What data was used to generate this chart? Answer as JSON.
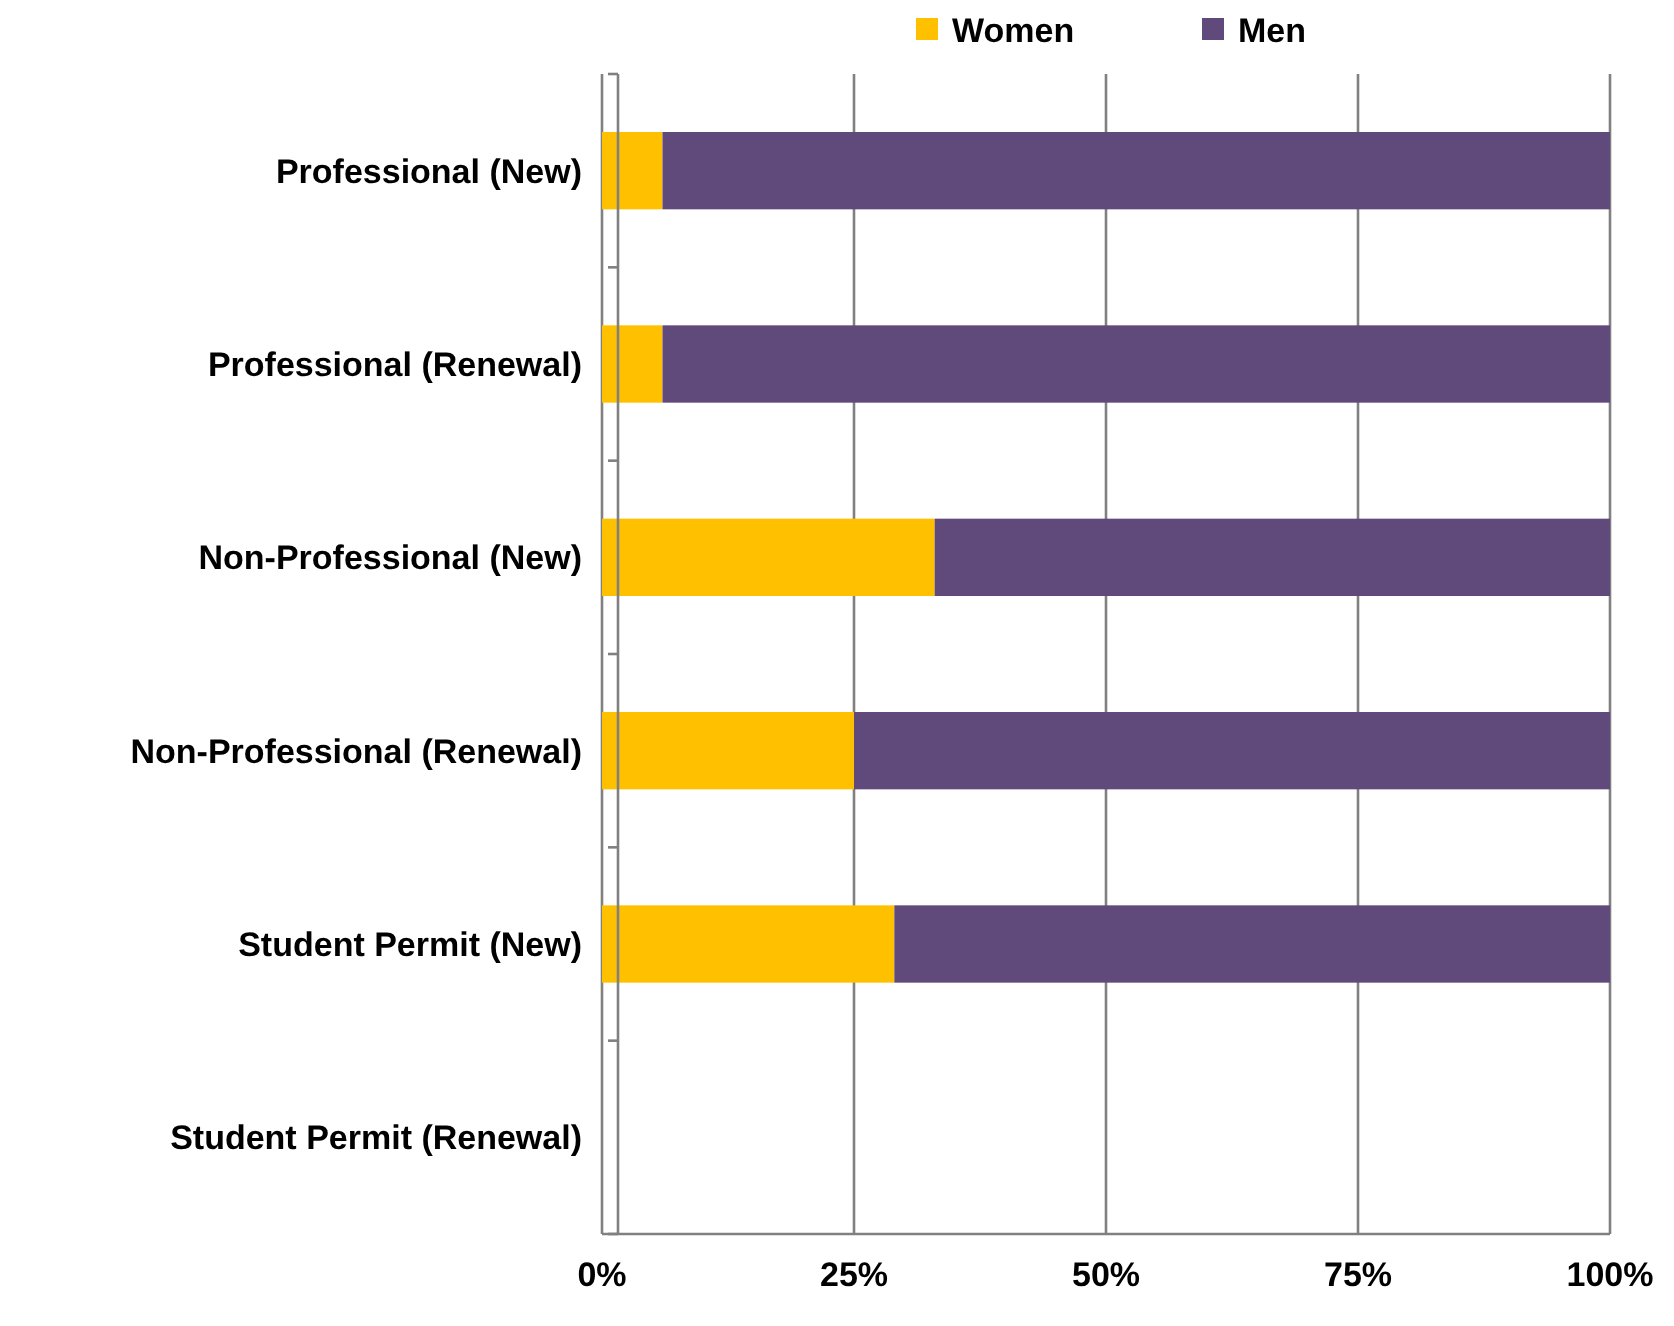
{
  "chart_data": {
    "type": "bar",
    "orientation": "horizontal",
    "stacked": true,
    "categories": [
      "Professional (New)",
      "Professional (Renewal)",
      "Non-Professional (New)",
      "Non-Professional (Renewal)",
      "Student Permit (New)",
      "Student Permit (Renewal)"
    ],
    "series": [
      {
        "name": "Women",
        "color": "#ffc000",
        "values": [
          6,
          6,
          33,
          25,
          29,
          null
        ]
      },
      {
        "name": "Men",
        "color": "#604a7b",
        "values": [
          94,
          94,
          67,
          75,
          71,
          null
        ]
      }
    ],
    "xlim": [
      0,
      100
    ],
    "xticks": [
      {
        "value": 0,
        "label": "0%"
      },
      {
        "value": 25,
        "label": "25%"
      },
      {
        "value": 50,
        "label": "50%"
      },
      {
        "value": 75,
        "label": "75%"
      },
      {
        "value": 100,
        "label": "100%"
      }
    ],
    "grid": "x",
    "legend": "top"
  }
}
